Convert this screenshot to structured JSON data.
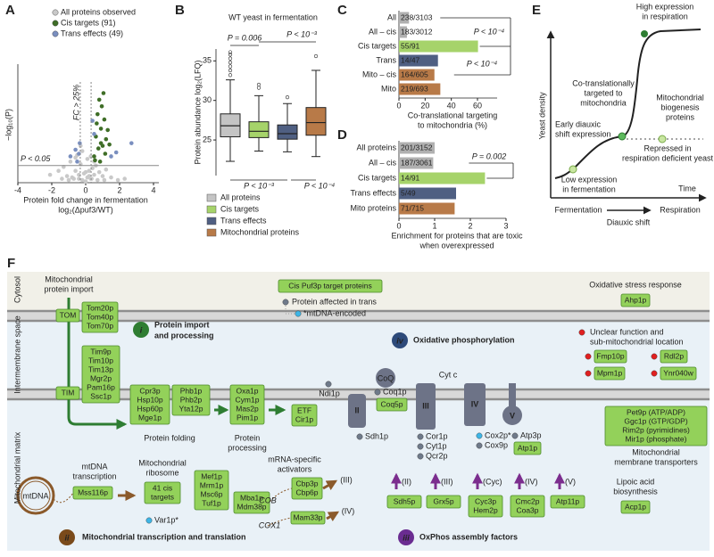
{
  "panel_labels": [
    "A",
    "B",
    "C",
    "D",
    "E",
    "F"
  ],
  "chart_data": [
    {
      "type": "scatter",
      "ylabel": "−log₁₀(P)",
      "xlabel": [
        "Protein fold change in fermentation",
        "log₂(Δpuf3/WT)"
      ],
      "xlim": [
        -4,
        4
      ],
      "xticks": [
        -4,
        -2,
        0,
        2,
        4
      ],
      "ylim": [
        0,
        9
      ],
      "threshold": 1.3,
      "fc_cutoffs": [
        -0.32,
        0.32
      ],
      "annotations": [
        "FC > 25%",
        "P < 0.05"
      ],
      "series": [
        {
          "name": "All proteins observed",
          "color": "#c9c9c9",
          "x": [
            -2.1,
            -1.6,
            -1.3,
            -1.1,
            -0.9,
            -0.8,
            -0.6,
            -0.5,
            -0.4,
            -0.3,
            -0.2,
            -0.1,
            0,
            0.1,
            0.2,
            0.3,
            0.4,
            0.5,
            0.6,
            0.8,
            1.0,
            1.2,
            1.5,
            1.9,
            -0.7,
            -0.2,
            0.1,
            0.3,
            -1.0,
            0.7,
            -0.4,
            0.2,
            -0.6,
            0.5,
            0,
            -1.4,
            1.1,
            2.3,
            -0.3,
            0.35
          ],
          "y": [
            0.6,
            0.9,
            1.2,
            0.5,
            1.6,
            0.4,
            0.9,
            2.1,
            0.3,
            1.4,
            0.2,
            0.7,
            0.1,
            0.4,
            0.9,
            0.3,
            1.1,
            0.6,
            1.3,
            0.8,
            0.5,
            1.0,
            0.4,
            0.2,
            0.3,
            2.4,
            1.8,
            2.0,
            0.2,
            0.2,
            0.6,
            0.5,
            1.9,
            1.6,
            0.8,
            0.3,
            0.2,
            0.3,
            2.8,
            0.3
          ]
        },
        {
          "name": "Cis targets (91)",
          "color": "#3f6e27",
          "x": [
            0.5,
            0.6,
            0.7,
            0.8,
            0.9,
            1.0,
            1.1,
            1.2,
            0.55,
            0.75,
            0.95,
            1.15,
            1.3,
            0.65,
            0.85,
            1.05,
            1.4,
            0.9
          ],
          "y": [
            2.0,
            3.5,
            5.2,
            6.3,
            4.1,
            2.8,
            4.8,
            3.3,
            1.7,
            2.6,
            5.8,
            2.2,
            4.0,
            4.5,
            1.6,
            6.8,
            2.9,
            3.0
          ]
        },
        {
          "name": "Trans effects (49)",
          "color": "#7a8fbf",
          "x": [
            -0.9,
            -0.6,
            -0.5,
            -0.35,
            0.4,
            0.5,
            1.5,
            1.8,
            2.7,
            -0.4
          ],
          "y": [
            2.0,
            2.5,
            1.6,
            3.0,
            4.7,
            3.7,
            2.0,
            2.3,
            3.0,
            2.2
          ]
        }
      ]
    },
    {
      "type": "box",
      "title": "WT yeast in fermentation",
      "ylabel": "Protein abundance log₂(LFQ)",
      "categories": [
        "All proteins",
        "Cis targets",
        "Trans effects",
        "Mitochondrial proteins"
      ],
      "colors": [
        "#c4c4c4",
        "#a6d36a",
        "#4f5f82",
        "#b87a48"
      ],
      "whislo": [
        22.3,
        23.6,
        23.5,
        22.9
      ],
      "q1": [
        25.4,
        25.3,
        25.1,
        25.6
      ],
      "median": [
        26.8,
        26.1,
        25.8,
        27.2
      ],
      "q3": [
        28.3,
        27.3,
        26.9,
        29.1
      ],
      "whishi": [
        32.6,
        30.6,
        29.6,
        33.8
      ],
      "outliers": [
        [
          33.2,
          33.8,
          34.3,
          34.8,
          35.3,
          35.8,
          36.1
        ],
        [
          31.6,
          32.0
        ],
        [
          30.4
        ],
        [
          35.6
        ]
      ],
      "ylim": [
        20.5,
        36.5
      ],
      "yticks": [
        25,
        30,
        35
      ],
      "annotations": [
        "P = 0.006",
        "P < 10⁻³",
        "P < 10⁻³",
        "P < 10⁻⁴"
      ]
    },
    {
      "type": "bar",
      "categories": [
        "All",
        "All – cis",
        "Cis targets",
        "Trans",
        "Mito – cis",
        "Mito"
      ],
      "values": [
        7.7,
        6.1,
        60.4,
        29.8,
        27.1,
        31.6
      ],
      "value_labels": [
        "238/3103",
        "183/3012",
        "55/91",
        "14/47",
        "164/605",
        "219/693"
      ],
      "colors": [
        "#b0b0b0",
        "#b0b0b0",
        "#a6d36a",
        "#4f5f82",
        "#b87a48",
        "#b87a48"
      ],
      "xlim": [
        0,
        75
      ],
      "xticks": [
        0,
        20,
        40,
        60
      ],
      "xlabel": [
        "Co-translational targeting",
        "to mitochondria (%)"
      ],
      "annotations": [
        "P < 10⁻⁴",
        "P < 10⁻⁴"
      ]
    },
    {
      "type": "bar",
      "categories": [
        "All proteins",
        "All – cis",
        "Cis targets",
        "Trans effects",
        "Mito proteins"
      ],
      "values": [
        1,
        0.96,
        2.41,
        1.6,
        1.56
      ],
      "value_labels": [
        "201/3152",
        "187/3061",
        "14/91",
        "5/49",
        "71/715"
      ],
      "colors": [
        "#b0b0b0",
        "#b0b0b0",
        "#a6d36a",
        "#4f5f82",
        "#b87a48"
      ],
      "xlim": [
        0,
        3
      ],
      "xticks": [
        0,
        1,
        2,
        3
      ],
      "xlabel": [
        "Enrichment for proteins that are toxic",
        "when overexpressed"
      ],
      "annotations": [
        "P = 0.002"
      ]
    }
  ],
  "diagram_e": {
    "ylabel": "Yeast density",
    "xlabel": "Time",
    "labels": {
      "high": [
        "High expression",
        "in respiration"
      ],
      "cotrans": [
        "Co-translationally",
        "targeted to",
        "mitochondria"
      ],
      "biogenesis": [
        "Mitochondrial",
        "biogenesis",
        "proteins"
      ],
      "early": [
        "Early diauxic",
        "shift expression"
      ],
      "repressed": [
        "Repressed in",
        "respiration deficient yeast"
      ],
      "low": [
        "Low expression",
        "in fermentation"
      ]
    },
    "fermentation": "Fermentation",
    "respiration": "Respiration",
    "shift": "Diauxic shift"
  },
  "figure_f": {
    "compartments": [
      "Cytosol",
      "Intermembrane space",
      "Mitochondrial matrix"
    ],
    "legend": {
      "cis": "Cis Puf3p target proteins",
      "trans": "Protein affected in trans",
      "mtdna": "*mtDNA-encoded"
    },
    "import_label": [
      "Mitochondrial",
      "protein import"
    ],
    "tom": "TOM",
    "tom_proteins": [
      "Tom20p",
      "Tom40p",
      "Tom70p"
    ],
    "tim": "TIM",
    "tim_proteins": [
      "Tim9p",
      "Tim10p",
      "Tim13p",
      "Mgr2p",
      "Pam16p",
      "Ssc1p"
    ],
    "section_i": {
      "num": "i",
      "title": [
        "Protein import",
        "and processing"
      ]
    },
    "folding_a": [
      "Cpr3p",
      "Hsp10p",
      "Hsp60p",
      "Mge1p"
    ],
    "folding_b": [
      "Phb1p",
      "Phb2p",
      "Yta12p"
    ],
    "folding_label": "Protein folding",
    "processing": [
      "Oxa1p",
      "Cym1p",
      "Mas2p",
      "Pim1p"
    ],
    "processing_label": [
      "Protein",
      "processing"
    ],
    "section_iv": {
      "num": "iv",
      "title": "Oxidative phosphorylation"
    },
    "etf": [
      "ETF",
      "Cir1p"
    ],
    "ndi1": "Ndi1p",
    "complex_ii": "II",
    "sdh1": "Sdh1p",
    "coq": "CoQ",
    "coq1": "Coq1p",
    "coq5": "Coq5p",
    "cytc": "Cyt c",
    "complex_iii": "III",
    "iii_proteins": [
      "Cor1p",
      "Cyt1p",
      "Qcr2p"
    ],
    "complex_iv": "IV",
    "cox2": "Cox2p*",
    "cox9": "Cox9p",
    "complex_v": "V",
    "atp3": "Atp3p",
    "atp1": "Atp1p",
    "stress_label": "Oxidative stress response",
    "ahp1": "Ahp1p",
    "unclear_label": [
      "Unclear function and",
      "sub-mitochondrial location"
    ],
    "unclear_proteins": [
      "Fmp10p",
      "Rdl2p",
      "Mpm1p",
      "Ynr040w"
    ],
    "transporters": [
      "Pet9p (ATP/ADP)",
      "Ggc1p (GTP/GDP)",
      "Rim2p (pyrimidines)",
      "Mir1p (phosphate)"
    ],
    "transporters_label": [
      "Mitochondrial",
      "membrane transporters"
    ],
    "mtdna": "mtDNA",
    "transcription_label": [
      "mtDNA",
      "transcription"
    ],
    "mss116": "Mss116p",
    "ribosome_label": [
      "Mitochondrial",
      "ribosome"
    ],
    "ribosome_box": [
      "41 cis",
      "targets"
    ],
    "var1": "Var1p*",
    "translation_a": [
      "Mef1p",
      "Mrm1p",
      "Msc6p",
      "Tuf1p"
    ],
    "translation_b": [
      "Mba1p",
      "Mdm38p"
    ],
    "activators_label": [
      "mRNA-specific",
      "activators"
    ],
    "cbp": [
      "Cbp3p",
      "Cbp6p"
    ],
    "cob": "COB",
    "target_iii": "(III)",
    "mam33": "Mam33p",
    "cox1": "COX1",
    "target_iv": "(IV)",
    "section_ii": {
      "num": "ii",
      "title": "Mitochondrial transcription and translation"
    },
    "assembly": [
      {
        "target": "(II)",
        "proteins": [
          "Sdh5p"
        ]
      },
      {
        "target": "(III)",
        "proteins": [
          "Grx5p"
        ]
      },
      {
        "target": "(Cyc)",
        "proteins": [
          "Cyc3p",
          "Hem2p"
        ]
      },
      {
        "target": "(IV)",
        "proteins": [
          "Cmc2p",
          "Coa3p"
        ]
      },
      {
        "target": "(V)",
        "proteins": [
          "Atp11p"
        ]
      }
    ],
    "section_iii": {
      "num": "iii",
      "title": "OxPhos assembly factors"
    },
    "lipoic_label": [
      "Lipoic acid",
      "biosynthesis"
    ],
    "acp1": "Acp1p"
  }
}
